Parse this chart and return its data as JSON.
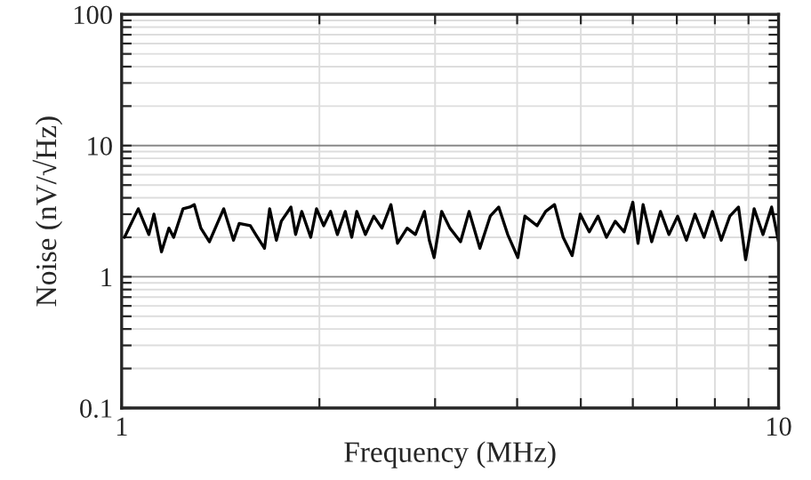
{
  "chart_data": {
    "type": "line",
    "xlabel": "Frequency (MHz)",
    "ylabel": "Noise (nV/√Hz)",
    "log": "xy",
    "grid": true,
    "legend": false,
    "marker": "none",
    "line_style": "solid",
    "xlim": [
      1,
      10
    ],
    "ylim": [
      0.1,
      100
    ],
    "xticks": [
      1,
      {
        "value": 2,
        "label": null
      },
      {
        "value": 3,
        "label": null
      },
      {
        "value": 4,
        "label": null
      },
      {
        "value": 5,
        "label": null
      },
      {
        "value": 6,
        "label": null
      },
      {
        "value": 7,
        "label": null
      },
      {
        "value": 8,
        "label": null
      },
      {
        "value": 9,
        "label": null
      },
      10
    ],
    "yticks": [
      0.1,
      {
        "value": 0.2,
        "label": null
      },
      {
        "value": 0.3,
        "label": null
      },
      {
        "value": 0.4,
        "label": null
      },
      {
        "value": 0.5,
        "label": null
      },
      {
        "value": 0.6,
        "label": null
      },
      {
        "value": 0.7,
        "label": null
      },
      {
        "value": 0.8,
        "label": null
      },
      {
        "value": 0.9,
        "label": null
      },
      1,
      {
        "value": 2,
        "label": null
      },
      {
        "value": 3,
        "label": null
      },
      {
        "value": 4,
        "label": null
      },
      {
        "value": 5,
        "label": null
      },
      {
        "value": 6,
        "label": null
      },
      {
        "value": 7,
        "label": null
      },
      {
        "value": 8,
        "label": null
      },
      {
        "value": 9,
        "label": null
      },
      10,
      {
        "value": 20,
        "label": null
      },
      {
        "value": 30,
        "label": null
      },
      {
        "value": 40,
        "label": null
      },
      {
        "value": 50,
        "label": null
      },
      {
        "value": 60,
        "label": null
      },
      {
        "value": 70,
        "label": null
      },
      {
        "value": 80,
        "label": null
      },
      {
        "value": 90,
        "label": null
      },
      100
    ],
    "series": [
      {
        "color": "#000000",
        "x": [
          1.01,
          1.06,
          1.1,
          1.12,
          1.15,
          1.18,
          1.2,
          1.24,
          1.27,
          1.29,
          1.32,
          1.36,
          1.43,
          1.48,
          1.51,
          1.57,
          1.6,
          1.65,
          1.68,
          1.72,
          1.75,
          1.81,
          1.84,
          1.88,
          1.94,
          1.98,
          2.03,
          2.08,
          2.13,
          2.19,
          2.24,
          2.28,
          2.35,
          2.42,
          2.49,
          2.57,
          2.63,
          2.72,
          2.8,
          2.89,
          2.94,
          2.99,
          3.07,
          3.16,
          3.28,
          3.38,
          3.51,
          3.64,
          3.75,
          3.87,
          4.01,
          4.11,
          4.29,
          4.42,
          4.56,
          4.7,
          4.85,
          4.99,
          5.15,
          5.31,
          5.47,
          5.64,
          5.82,
          6.0,
          6.11,
          6.22,
          6.41,
          6.61,
          6.81,
          7.02,
          7.24,
          7.46,
          7.7,
          7.93,
          8.18,
          8.43,
          8.69,
          8.91,
          9.18,
          9.47,
          9.76,
          10
        ],
        "values": [
          2.0,
          3.3,
          2.1,
          3.0,
          1.55,
          2.35,
          2.0,
          3.3,
          3.4,
          3.55,
          2.35,
          1.85,
          3.3,
          1.9,
          2.55,
          2.45,
          2.1,
          1.65,
          3.3,
          1.9,
          2.65,
          3.4,
          2.1,
          3.15,
          2.0,
          3.3,
          2.45,
          3.15,
          2.1,
          3.15,
          2.0,
          3.15,
          2.1,
          2.9,
          2.35,
          3.55,
          1.8,
          2.35,
          2.1,
          3.15,
          1.9,
          1.4,
          3.15,
          2.35,
          1.85,
          3.15,
          1.65,
          2.9,
          3.4,
          2.1,
          1.4,
          2.9,
          2.45,
          3.15,
          3.55,
          2.0,
          1.45,
          3.0,
          2.2,
          2.9,
          2.0,
          2.65,
          2.2,
          3.7,
          1.8,
          3.55,
          1.85,
          3.15,
          2.1,
          2.9,
          1.9,
          3.0,
          2.0,
          3.15,
          1.9,
          2.9,
          3.4,
          1.35,
          3.3,
          2.1,
          3.4,
          1.85
        ]
      }
    ]
  }
}
